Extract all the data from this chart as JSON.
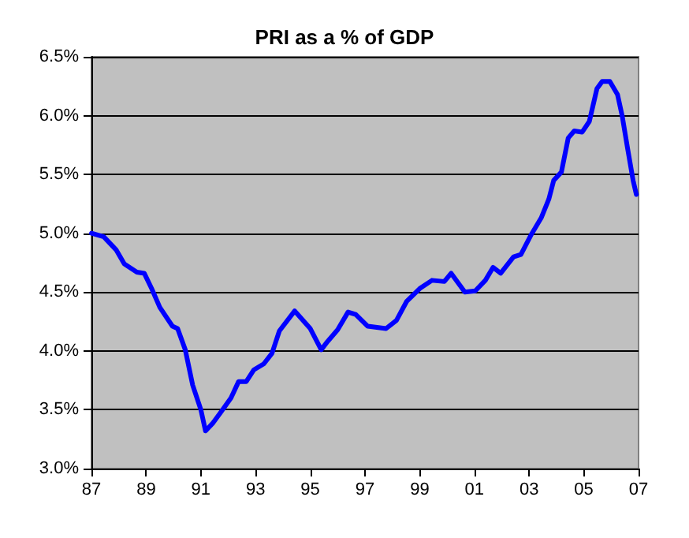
{
  "chart_data": {
    "type": "line",
    "title": "PRI as a % of GDP",
    "x": [
      1987.0,
      1987.45,
      1987.9,
      1988.2,
      1988.66,
      1988.93,
      1989.2,
      1989.5,
      1989.96,
      1990.15,
      1990.43,
      1990.7,
      1991.0,
      1991.17,
      1991.45,
      1991.73,
      1992.1,
      1992.38,
      1992.66,
      1992.94,
      1993.3,
      1993.6,
      1993.87,
      1994.43,
      1995.0,
      1995.4,
      1995.63,
      1996.0,
      1996.38,
      1996.66,
      1997.1,
      1997.77,
      1998.15,
      1998.52,
      1999.0,
      1999.45,
      1999.9,
      2000.15,
      2000.65,
      2001.03,
      2001.4,
      2001.68,
      2001.96,
      2002.43,
      2002.7,
      2003.08,
      2003.44,
      2003.72,
      2003.9,
      2004.18,
      2004.43,
      2004.65,
      2004.94,
      2005.2,
      2005.48,
      2005.67,
      2005.95,
      2006.23,
      2006.4,
      2006.6,
      2006.8,
      2006.92
    ],
    "series": [
      {
        "color": "#0000ff",
        "values": [
          5.0,
          4.97,
          4.86,
          4.74,
          4.67,
          4.66,
          4.53,
          4.37,
          4.21,
          4.19,
          4.01,
          3.71,
          3.5,
          3.32,
          3.39,
          3.48,
          3.6,
          3.74,
          3.74,
          3.84,
          3.89,
          3.98,
          4.17,
          4.34,
          4.19,
          4.01,
          4.08,
          4.18,
          4.33,
          4.31,
          4.21,
          4.19,
          4.26,
          4.42,
          4.53,
          4.6,
          4.59,
          4.66,
          4.5,
          4.51,
          4.6,
          4.71,
          4.66,
          4.8,
          4.82,
          4.99,
          5.13,
          5.29,
          5.45,
          5.52,
          5.81,
          5.87,
          5.86,
          5.95,
          6.23,
          6.29,
          6.29,
          6.18,
          6.0,
          5.72,
          5.45,
          5.33
        ]
      }
    ],
    "xlim": [
      1987,
      2007
    ],
    "xticks": [
      {
        "value": 1987,
        "label": "87"
      },
      {
        "value": 1989,
        "label": "89"
      },
      {
        "value": 1991,
        "label": "91"
      },
      {
        "value": 1993,
        "label": "93"
      },
      {
        "value": 1995,
        "label": "95"
      },
      {
        "value": 1997,
        "label": "97"
      },
      {
        "value": 1999,
        "label": "99"
      },
      {
        "value": 2001,
        "label": "01"
      },
      {
        "value": 2003,
        "label": "03"
      },
      {
        "value": 2005,
        "label": "05"
      },
      {
        "value": 2007,
        "label": "07"
      }
    ],
    "ylim": [
      3.0,
      6.5
    ],
    "yticks": [
      {
        "value": 3.0,
        "label": "3.0%"
      },
      {
        "value": 3.5,
        "label": "3.5%"
      },
      {
        "value": 4.0,
        "label": "4.0%"
      },
      {
        "value": 4.5,
        "label": "4.5%"
      },
      {
        "value": 5.0,
        "label": "5.0%"
      },
      {
        "value": 5.5,
        "label": "5.5%"
      },
      {
        "value": 6.0,
        "label": "6.0%"
      },
      {
        "value": 6.5,
        "label": "6.5%"
      }
    ],
    "grid": "y",
    "marker": "none",
    "line_style": "solid"
  }
}
